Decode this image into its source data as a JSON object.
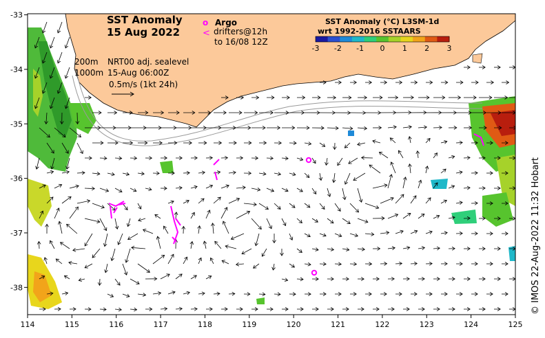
{
  "title": {
    "line1": "SST Anomaly",
    "line2": "15 Aug 2022"
  },
  "legend_overlay": {
    "argo_symbol": "o",
    "argo_label": "Argo",
    "drifter_symbol": "<",
    "drifter_label1": "drifters@12h",
    "drifter_label2": "to 16/08 12Z"
  },
  "contours": {
    "isobath1": "200m",
    "isobath2": "1000m"
  },
  "velocity_info": {
    "line1": "NRT00 adj. sealevel",
    "line2": "15-Aug 06:00Z",
    "line3": "0.5m/s (1kt 24h)"
  },
  "colorbar": {
    "title1": "SST Anomaly (°C) L3SM-1d",
    "title2": "wrt 1992-2016 SSTAARS",
    "ticks": [
      "-3",
      "-2",
      "-1",
      "0",
      "1",
      "2",
      "3"
    ],
    "colors": [
      "#1a1aa0",
      "#2a4fd0",
      "#1e8ad8",
      "#1fb8c9",
      "#2fcf7a",
      "#57c42e",
      "#a6d22a",
      "#e8d61c",
      "#f2a41a",
      "#e05a14",
      "#b81e0e"
    ]
  },
  "axes": {
    "x_ticks": [
      "114",
      "115",
      "116",
      "117",
      "118",
      "119",
      "120",
      "121",
      "122",
      "123",
      "124",
      "125"
    ],
    "y_ticks": [
      "-33",
      "-34",
      "-35",
      "-36",
      "-37",
      "-38"
    ]
  },
  "argo_floats": [
    {
      "lon": 120.32,
      "lat": -35.68
    },
    {
      "lon": 120.42,
      "lat": -37.72
    }
  ],
  "colors": {
    "land": "#fcc99a",
    "argo": "#ff00ff",
    "drifter": "#ff00ff",
    "isobath": "#999999"
  },
  "credit": "© IMOS 22-Aug-2022 11:32 Hobart"
}
